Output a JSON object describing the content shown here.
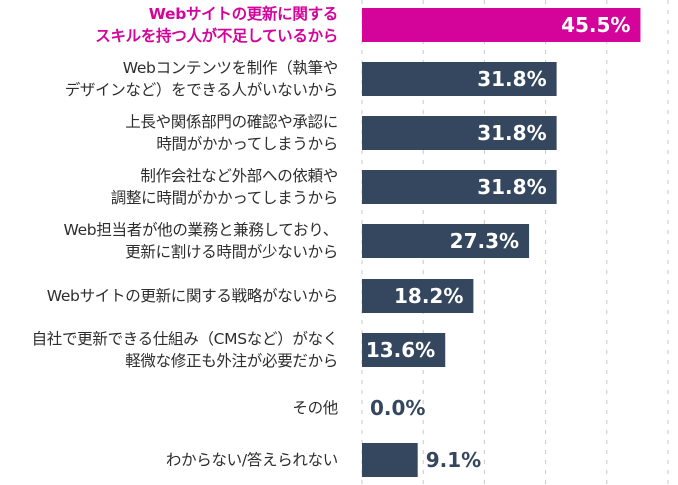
{
  "chart_data": {
    "type": "bar",
    "orientation": "horizontal",
    "categories": [
      "Webサイトの更新に関する\nスキルを持つ人が不足しているから",
      "Webコンテンツを制作（執筆や\nデザインなど）をできる人がいないから",
      "上長や関係部門の確認や承認に\n時間がかかってしまうから",
      "制作会社など外部への依頼や\n調整に時間がかかってしまうから",
      "Web担当者が他の業務と兼務しており、\n更新に割ける時間が少ないから",
      "Webサイトの更新に関する戦略がないから",
      "自社で更新できる仕組み（CMSなど）がなく\n軽微な修正も外注が必要だから",
      "その他",
      "わからない/答えられない"
    ],
    "values": [
      45.5,
      31.8,
      31.8,
      31.8,
      27.3,
      18.2,
      13.6,
      0.0,
      9.1
    ],
    "value_labels": [
      "45.5%",
      "31.8%",
      "31.8%",
      "31.8%",
      "27.3%",
      "18.2%",
      "13.6%",
      "0.0%",
      "9.1%"
    ],
    "xlim": [
      0,
      50
    ],
    "grid": "vertical dashed every 10",
    "highlight_index": 0,
    "colors": {
      "highlight": "#d4049b",
      "bar": "#34475e",
      "grid": "#c8c8c8",
      "label_inside": "#ffffff",
      "label_outside": "#34475e"
    }
  }
}
